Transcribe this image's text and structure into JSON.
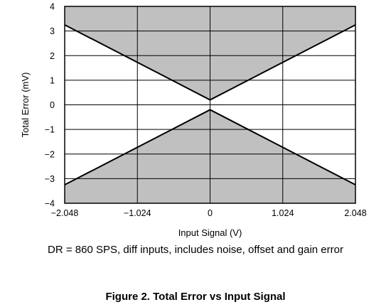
{
  "chart_data": {
    "type": "area",
    "xlabel": "Input Signal (V)",
    "ylabel": "Total Error (mV)",
    "xlim": [
      -2.048,
      2.048
    ],
    "ylim": [
      -4,
      4
    ],
    "x_ticks": [
      -2.048,
      -1.024,
      0,
      1.024,
      2.048
    ],
    "x_tick_labels": [
      "−2.048",
      "−1.024",
      "0",
      "1.024",
      "2.048"
    ],
    "y_ticks": [
      4,
      3,
      2,
      1,
      0,
      -1,
      -2,
      -3,
      -4
    ],
    "y_tick_labels": [
      "4",
      "3",
      "2",
      "1",
      "0",
      "−1",
      "−2",
      "−3",
      "−4"
    ],
    "grid": true,
    "fill_color": "#c0c0c0",
    "line_color": "#000000",
    "series": [
      {
        "x": [
          -2.048,
          0,
          2.048
        ],
        "values": [
          3.25,
          0.2,
          3.25
        ]
      },
      {
        "x": [
          -2.048,
          0,
          2.048
        ],
        "values": [
          -3.25,
          -0.2,
          -3.25
        ]
      }
    ],
    "note": "DR = 860 SPS, diff inputs, includes noise, offset and gain error"
  },
  "caption": "Figure 2. Total Error vs Input Signal"
}
